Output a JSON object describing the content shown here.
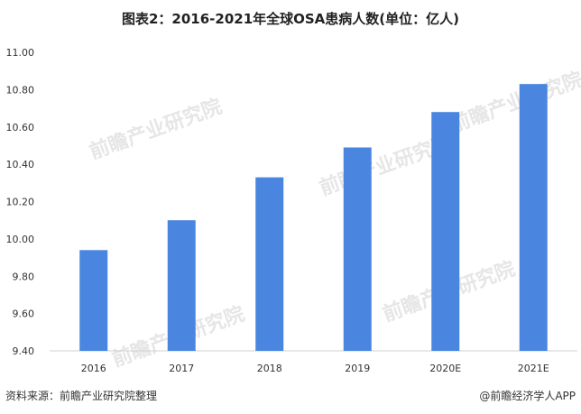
{
  "title": "图表2：2016-2021年全球OSA患病人数(单位：亿人)",
  "chart_data": {
    "type": "bar",
    "categories": [
      "2016",
      "2017",
      "2018",
      "2019",
      "2020E",
      "2021E"
    ],
    "values": [
      9.94,
      10.1,
      10.33,
      10.49,
      10.68,
      10.83
    ],
    "ylim": [
      9.4,
      11.0
    ],
    "yticks": [
      "9.40",
      "9.60",
      "9.80",
      "10.00",
      "10.20",
      "10.40",
      "10.60",
      "10.80",
      "11.00"
    ],
    "grid": false,
    "bar_color": "#4a86e0"
  },
  "footer": {
    "source": "资料来源：前瞻产业研究院整理",
    "brand": "@前瞻经济学人APP"
  },
  "watermark": "前瞻产业研究院"
}
